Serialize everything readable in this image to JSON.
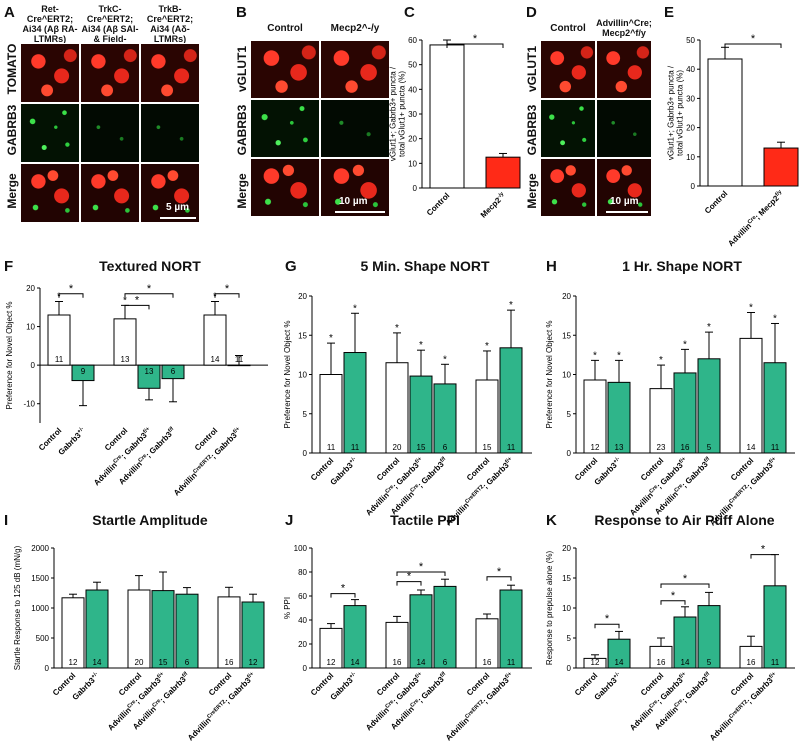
{
  "panels": {
    "A": {
      "letter": "A",
      "cols": [
        "Ret-Cre^ERT2; Ai34 (Aβ RA-LTMRs)",
        "TrkC-Cre^ERT2; Ai34 (Aβ SAI- & Field-LTMRs)",
        "TrkB-Cre^ERT2; Ai34 (Aδ-LTMRs)"
      ],
      "rows": [
        "TOMATO",
        "GABRB3",
        "Merge"
      ],
      "scale": "5 µm"
    },
    "B": {
      "letter": "B",
      "cols": [
        "Control",
        "Mecp2^-/y"
      ],
      "rows": [
        "vGLUT1",
        "GABRB3",
        "Merge"
      ],
      "scale": "10 µm"
    },
    "D": {
      "letter": "D",
      "cols": [
        "Control",
        "Advillin^Cre; Mecp2^f/y"
      ],
      "rows": [
        "vGLUT1",
        "GABRB3",
        "Merge"
      ],
      "scale": "10 µm"
    }
  },
  "chart_data": [
    {
      "id": "C",
      "type": "bar",
      "categories": [
        "Control",
        "Mecp2^-/y"
      ],
      "values": [
        58,
        12.5
      ],
      "errors": [
        2,
        1.5
      ],
      "ylabel": "vGlut1+; Gabrb3+ puncta / total vGlut1+ puncta (%)",
      "ylim": [
        0,
        60
      ],
      "yticks": [
        0,
        10,
        20,
        30,
        40,
        50,
        60
      ],
      "colors": [
        "#ffffff",
        "#ff2a17"
      ],
      "sig": [
        {
          "a": 0,
          "b": 1,
          "label": "*"
        }
      ]
    },
    {
      "id": "E",
      "type": "bar",
      "categories": [
        "Control",
        "Advillin^Cre; Mecp2^f/y"
      ],
      "values": [
        43.5,
        13
      ],
      "errors": [
        4,
        2
      ],
      "ylabel": "vGlut1+; Gabrb3+ puncta / total vGlut1+ puncta (%)",
      "ylim": [
        0,
        50
      ],
      "yticks": [
        0,
        10,
        20,
        30,
        40,
        50
      ],
      "colors": [
        "#ffffff",
        "#ff2a17"
      ],
      "sig": [
        {
          "a": 0,
          "b": 1,
          "label": "*"
        }
      ]
    },
    {
      "id": "F",
      "title": "Textured NORT",
      "type": "bar",
      "ylabel": "Preference for Novel Object %",
      "ylim": [
        -15,
        20
      ],
      "yticks": [
        -10,
        0,
        10,
        20
      ],
      "groups": [
        [
          0,
          1
        ],
        [
          2,
          3,
          4
        ],
        [
          5,
          6
        ]
      ],
      "categories": [
        "Control",
        "Gabrb3^+/-",
        "Control",
        "Advillin^Cre; Gabrb3^f/+",
        "Advillin^Cre; Gabrb3^f/f",
        "Control",
        "Advillin^CreERT2; Gabrb3^f/+"
      ],
      "values": [
        13,
        -4,
        12,
        -6,
        -3.5,
        13,
        0
      ],
      "errors": [
        3.5,
        6.5,
        3.5,
        3,
        6,
        3.5,
        2.5
      ],
      "n": [
        "11",
        "9",
        "13",
        "13",
        "6",
        "14",
        "11"
      ],
      "colors": [
        "#ffffff",
        "#2fb58a",
        "#ffffff",
        "#2fb58a",
        "#2fb58a",
        "#ffffff",
        "#2fb58a"
      ],
      "stars": [
        0,
        2,
        5
      ],
      "sig": [
        {
          "a": 0,
          "b": 1,
          "label": "*",
          "y": 18.5
        },
        {
          "a": 2,
          "b": 3,
          "label": "*",
          "y": 15.5
        },
        {
          "a": 2,
          "b": 4,
          "label": "*",
          "y": 18.5
        },
        {
          "a": 5,
          "b": 6,
          "label": "*",
          "y": 18.5
        }
      ]
    },
    {
      "id": "G",
      "title": "5 Min. Shape NORT",
      "type": "bar",
      "ylabel": "Preference for Novel Object %",
      "ylim": [
        0,
        20
      ],
      "yticks": [
        0,
        5,
        10,
        15,
        20
      ],
      "groups": [
        [
          0,
          1
        ],
        [
          2,
          3,
          4
        ],
        [
          5,
          6
        ]
      ],
      "categories": [
        "Control",
        "Gabrb3^+/-",
        "Control",
        "Advillin^Cre; Gabrb3^f/+",
        "Advillin^Cre; Gabrb3^f/f",
        "Control",
        "Advillin^CreERT2; Gabrb3^f/+"
      ],
      "values": [
        10,
        12.8,
        11.5,
        9.8,
        8.8,
        9.3,
        13.4
      ],
      "errors": [
        4,
        5,
        3.8,
        3.3,
        2.5,
        3.7,
        4.8
      ],
      "n": [
        "11",
        "11",
        "20",
        "15",
        "6",
        "15",
        "11"
      ],
      "colors": [
        "#ffffff",
        "#2fb58a",
        "#ffffff",
        "#2fb58a",
        "#2fb58a",
        "#ffffff",
        "#2fb58a"
      ],
      "stars": [
        0,
        1,
        2,
        3,
        4,
        5,
        6
      ],
      "sig": []
    },
    {
      "id": "H",
      "title": "1 Hr. Shape NORT",
      "type": "bar",
      "ylabel": "Preference for Novel Object %",
      "ylim": [
        0,
        20
      ],
      "yticks": [
        0,
        5,
        10,
        15,
        20
      ],
      "groups": [
        [
          0,
          1
        ],
        [
          2,
          3,
          4
        ],
        [
          5,
          6
        ]
      ],
      "categories": [
        "Control",
        "Gabrb3^+/-",
        "Control",
        "Advillin^Cre; Gabrb3^f/+",
        "Advillin^Cre; Gabrb3^f/f",
        "Control",
        "Advillin^CreERT2; Gabrb3^f/+"
      ],
      "values": [
        9.3,
        9,
        8.2,
        10.2,
        12,
        14.6,
        11.5
      ],
      "errors": [
        2.5,
        2.8,
        3,
        3,
        3.4,
        3.3,
        5
      ],
      "n": [
        "12",
        "13",
        "23",
        "16",
        "5",
        "14",
        "11"
      ],
      "colors": [
        "#ffffff",
        "#2fb58a",
        "#ffffff",
        "#2fb58a",
        "#2fb58a",
        "#ffffff",
        "#2fb58a"
      ],
      "stars": [
        0,
        1,
        2,
        3,
        4,
        5,
        6
      ],
      "sig": []
    },
    {
      "id": "I",
      "title": "Startle Amplitude",
      "type": "bar",
      "ylabel": "Startle Response to 125 dB (mN/g)",
      "ylim": [
        0,
        2000
      ],
      "yticks": [
        0,
        500,
        1000,
        1500,
        2000
      ],
      "groups": [
        [
          0,
          1
        ],
        [
          2,
          3,
          4
        ],
        [
          5,
          6
        ]
      ],
      "categories": [
        "Control",
        "Gabrb3^+/-",
        "Control",
        "Advillin^Cre; Gabrb3^f/+",
        "Advillin^Cre; Gabrb3^f/f",
        "Control",
        "Advillin^CreERT2; Gabrb3^f/+"
      ],
      "values": [
        1170,
        1300,
        1300,
        1290,
        1230,
        1185,
        1100
      ],
      "errors": [
        60,
        130,
        240,
        310,
        110,
        160,
        130
      ],
      "n": [
        "12",
        "14",
        "20",
        "15",
        "6",
        "16",
        "12"
      ],
      "colors": [
        "#ffffff",
        "#2fb58a",
        "#ffffff",
        "#2fb58a",
        "#2fb58a",
        "#ffffff",
        "#2fb58a"
      ],
      "stars": [],
      "sig": []
    },
    {
      "id": "J",
      "title": "Tactile PPI",
      "type": "bar",
      "ylabel": "% PPI",
      "ylim": [
        0,
        100
      ],
      "yticks": [
        0,
        20,
        40,
        60,
        80,
        100
      ],
      "groups": [
        [
          0,
          1
        ],
        [
          2,
          3,
          4
        ],
        [
          5,
          6
        ]
      ],
      "categories": [
        "Control",
        "Gabrb3^+/-",
        "Control",
        "Advillin^Cre; Gabrb3^f/+",
        "Advillin^Cre; Gabrb3^f/f",
        "Control",
        "Advillin^CreERT2; Gabrb3^f/+"
      ],
      "values": [
        33,
        52,
        38,
        61,
        68,
        41,
        65
      ],
      "errors": [
        4,
        5,
        5,
        4,
        6,
        4,
        4
      ],
      "n": [
        "12",
        "14",
        "16",
        "14",
        "6",
        "16",
        "11"
      ],
      "colors": [
        "#ffffff",
        "#2fb58a",
        "#ffffff",
        "#2fb58a",
        "#2fb58a",
        "#ffffff",
        "#2fb58a"
      ],
      "stars": [],
      "sig": [
        {
          "a": 0,
          "b": 1,
          "label": "*",
          "y": 62
        },
        {
          "a": 2,
          "b": 3,
          "label": "*",
          "y": 72
        },
        {
          "a": 2,
          "b": 4,
          "label": "*",
          "y": 80
        },
        {
          "a": 5,
          "b": 6,
          "label": "*",
          "y": 76
        }
      ]
    },
    {
      "id": "K",
      "title": "Response to Air Puff Alone",
      "type": "bar",
      "ylabel": "Response to prepulse alone (%)",
      "ylim": [
        0,
        20
      ],
      "yticks": [
        0,
        5,
        10,
        15,
        20
      ],
      "groups": [
        [
          0,
          1
        ],
        [
          2,
          3,
          4
        ],
        [
          5,
          6
        ]
      ],
      "categories": [
        "Control",
        "Gabrb3^+/-",
        "Control",
        "Advillin^Cre; Gabrb3^f/+",
        "Advillin^Cre; Gabrb3^f/f",
        "Control",
        "Advillin^CreERT2; Gabrb3^f/+"
      ],
      "values": [
        1.6,
        4.8,
        3.6,
        8.5,
        10.4,
        3.6,
        13.7
      ],
      "errors": [
        0.6,
        1.3,
        1.4,
        1.7,
        2.2,
        1.7,
        5.2
      ],
      "n": [
        "12",
        "14",
        "16",
        "14",
        "5",
        "16",
        "11"
      ],
      "colors": [
        "#ffffff",
        "#2fb58a",
        "#ffffff",
        "#2fb58a",
        "#2fb58a",
        "#ffffff",
        "#2fb58a"
      ],
      "stars": [],
      "sig": [
        {
          "a": 0,
          "b": 1,
          "label": "*",
          "y": 7.3
        },
        {
          "a": 2,
          "b": 3,
          "label": "*",
          "y": 11.2
        },
        {
          "a": 2,
          "b": 4,
          "label": "*",
          "y": 14
        },
        {
          "a": 5,
          "b": 6,
          "label": "*",
          "y": 18.9
        }
      ]
    }
  ]
}
